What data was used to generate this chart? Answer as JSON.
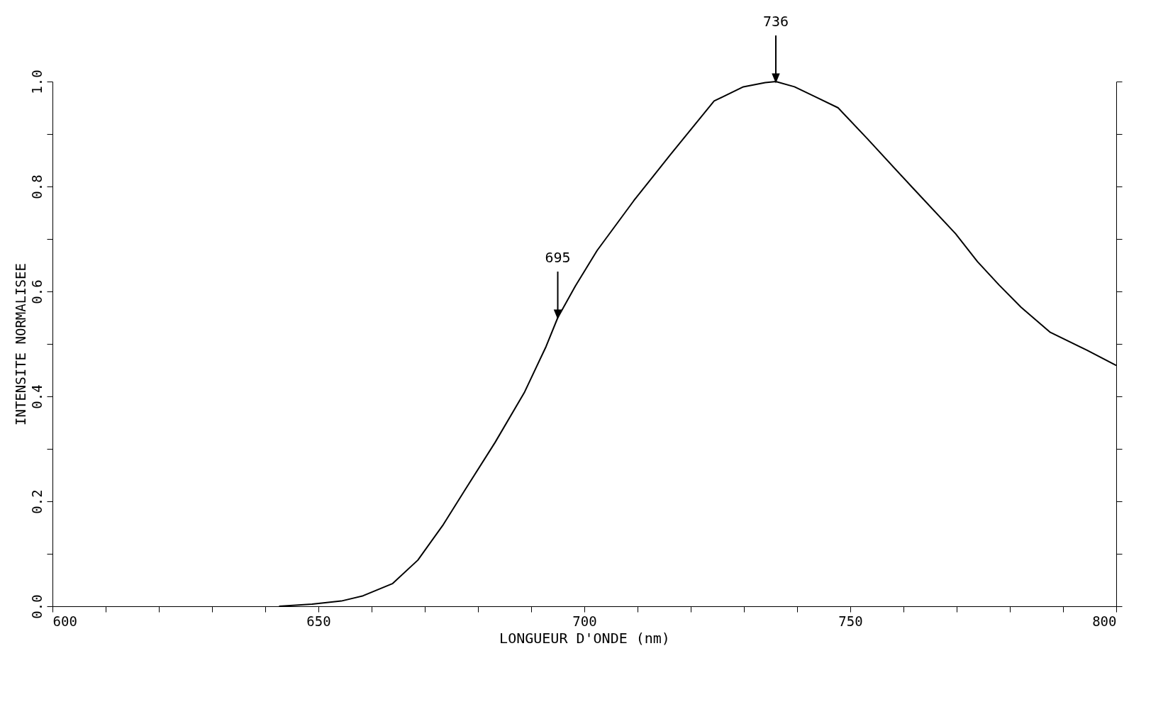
{
  "chart_data": {
    "type": "line",
    "xlabel": "LONGUEUR D'ONDE (nm)",
    "ylabel": "INTENSITE NORMALISEE",
    "x": [
      642.6,
      648.8,
      654.3,
      658.4,
      663.9,
      668.7,
      673.5,
      677.7,
      683.2,
      688.7,
      692.8,
      695,
      698.3,
      702.4,
      709.3,
      716.2,
      724.4,
      729.9,
      734,
      736,
      739.5,
      743.6,
      747.7,
      753.3,
      761.5,
      769.8,
      773.9,
      778,
      782.1,
      787.6,
      794.5,
      800
    ],
    "series": [
      {
        "color": "#000000",
        "values": [
          0,
          0.004,
          0.01,
          0.02,
          0.043,
          0.088,
          0.156,
          0.224,
          0.312,
          0.407,
          0.495,
          0.55,
          0.61,
          0.678,
          0.773,
          0.861,
          0.963,
          0.99,
          0.998,
          1.0,
          0.99,
          0.97,
          0.95,
          0.89,
          0.8,
          0.71,
          0.657,
          0.612,
          0.57,
          0.522,
          0.488,
          0.459
        ]
      }
    ],
    "annotations": [
      {
        "text": "695",
        "x": 695,
        "y": 0.55
      },
      {
        "text": "736",
        "x": 736,
        "y": 1.0
      }
    ],
    "xlim": [
      600,
      800
    ],
    "ylim": [
      0,
      1
    ],
    "xticks": [
      600,
      {
        "value": 610,
        "label": null
      },
      {
        "value": 620,
        "label": null
      },
      {
        "value": 630,
        "label": null
      },
      {
        "value": 640,
        "label": null
      },
      650,
      {
        "value": 660,
        "label": null
      },
      {
        "value": 670,
        "label": null
      },
      {
        "value": 680,
        "label": null
      },
      {
        "value": 690,
        "label": null
      },
      700,
      {
        "value": 710,
        "label": null
      },
      {
        "value": 720,
        "label": null
      },
      {
        "value": 730,
        "label": null
      },
      {
        "value": 740,
        "label": null
      },
      750,
      {
        "value": 760,
        "label": null
      },
      {
        "value": 770,
        "label": null
      },
      {
        "value": 780,
        "label": null
      },
      {
        "value": 790,
        "label": null
      },
      800
    ],
    "yticks": [
      {
        "value": 0,
        "label": "0.0"
      },
      {
        "value": 0.1,
        "label": null
      },
      0.2,
      {
        "value": 0.3,
        "label": null
      },
      0.4,
      {
        "value": 0.5,
        "label": null
      },
      0.6,
      {
        "value": 0.7,
        "label": null
      },
      0.8,
      {
        "value": 0.9,
        "label": null
      },
      {
        "value": 1,
        "label": "1.0"
      }
    ],
    "grid": false,
    "marker": "none",
    "line_style": "solid"
  }
}
